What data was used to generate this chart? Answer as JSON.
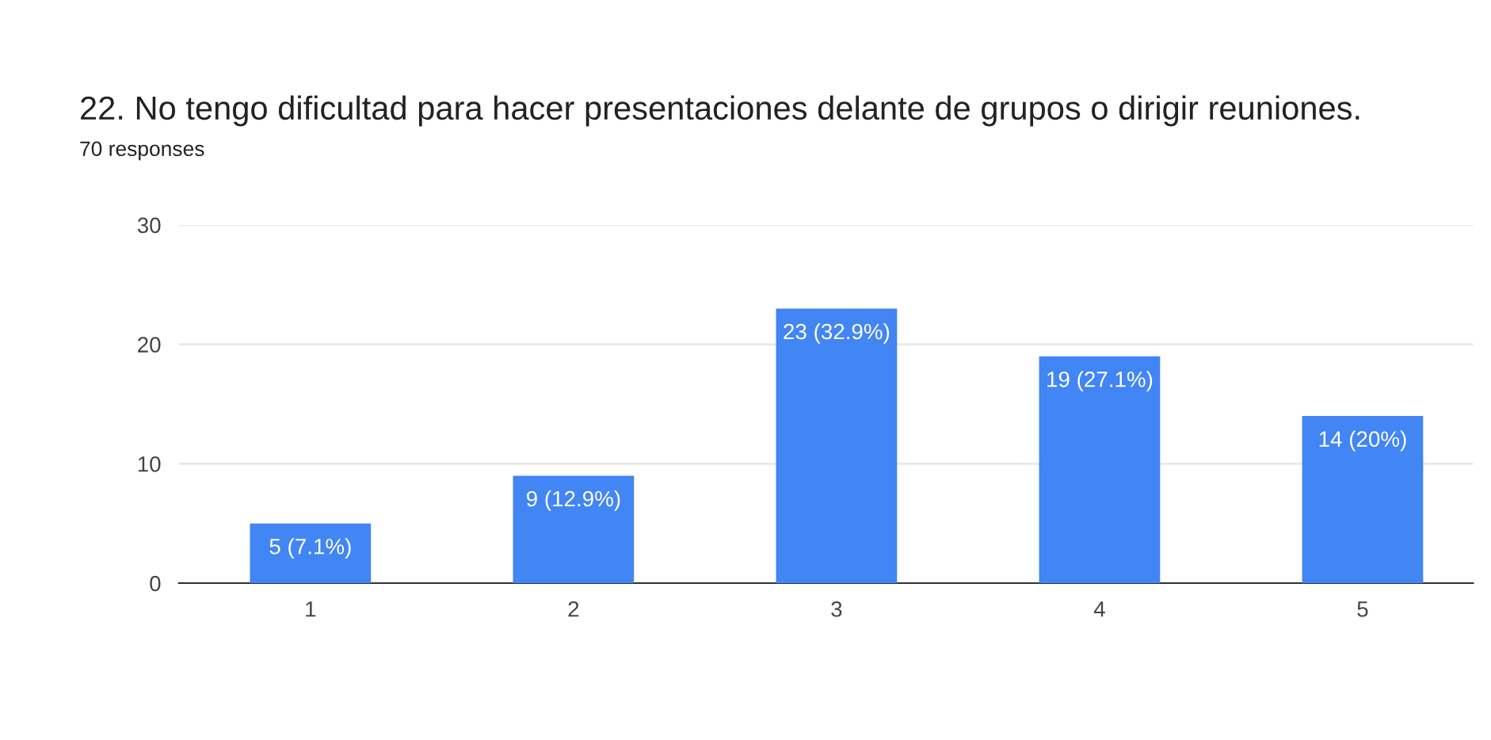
{
  "chart_data": {
    "type": "bar",
    "title": "22. No tengo dificultad para hacer presentaciones delante de grupos o dirigir reuniones.",
    "subtitle": "70 responses",
    "categories": [
      "1",
      "2",
      "3",
      "4",
      "5"
    ],
    "values": [
      5,
      9,
      23,
      19,
      14
    ],
    "value_labels": [
      "5 (7.1%)",
      "9 (12.9%)",
      "23 (32.9%)",
      "19 (27.1%)",
      "14 (20%)"
    ],
    "color": "#4285f4",
    "ylim": [
      0,
      30
    ],
    "yticks": [
      0,
      10,
      20,
      30
    ],
    "grid": "y",
    "legend": false
  }
}
